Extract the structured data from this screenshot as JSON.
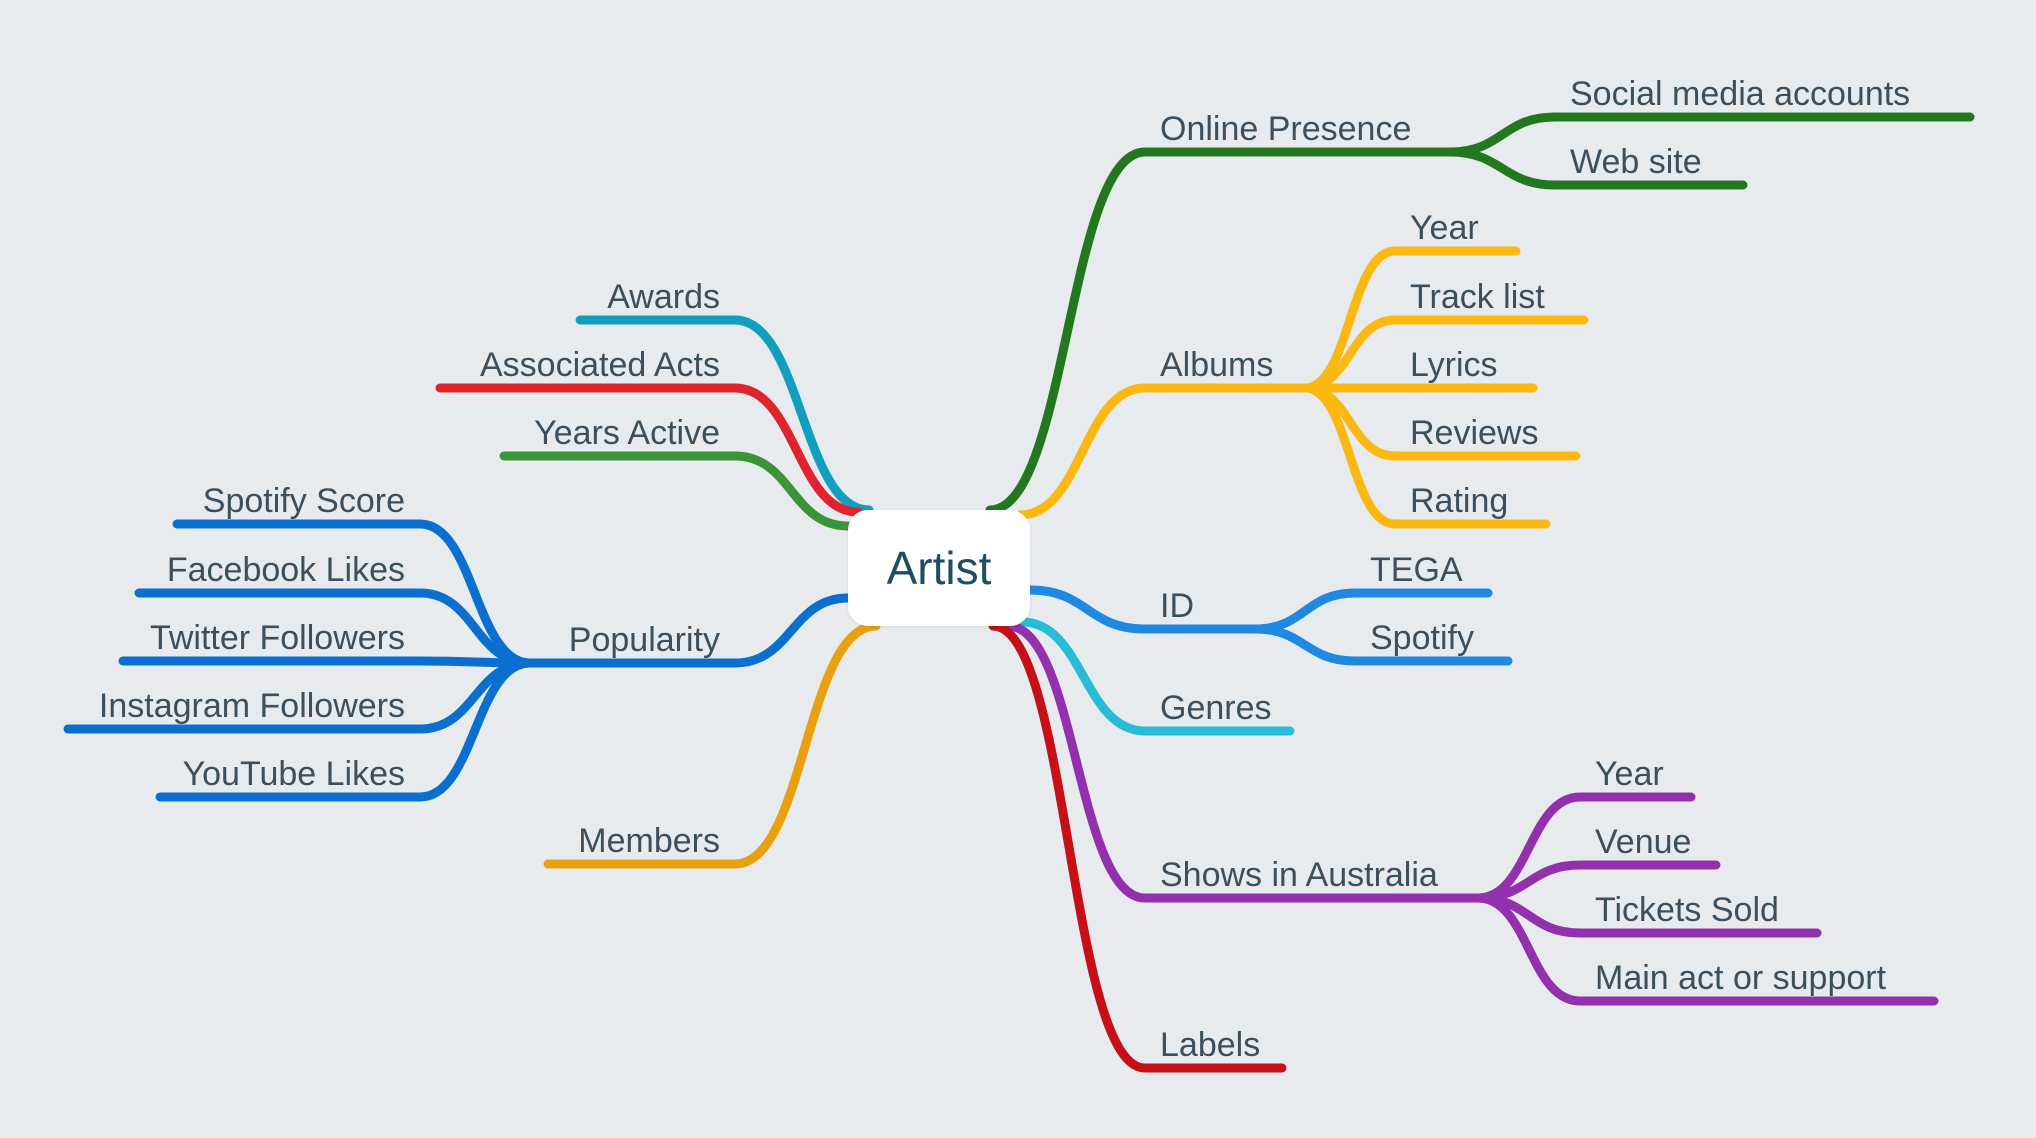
{
  "root": {
    "label": "Artist"
  },
  "right": [
    {
      "label": "Online Presence",
      "color": "#23781f",
      "children": [
        {
          "label": "Social media accounts"
        },
        {
          "label": "Web site"
        }
      ]
    },
    {
      "label": "Albums",
      "color": "#fbb813",
      "children": [
        {
          "label": "Year"
        },
        {
          "label": "Track list"
        },
        {
          "label": "Lyrics"
        },
        {
          "label": "Reviews"
        },
        {
          "label": "Rating"
        }
      ]
    },
    {
      "label": "ID",
      "color": "#1f88e0",
      "children": [
        {
          "label": "TEGA"
        },
        {
          "label": "Spotify"
        }
      ]
    },
    {
      "label": "Genres",
      "color": "#28bcd6",
      "children": []
    },
    {
      "label": "Shows in Australia",
      "color": "#9330ad",
      "children": [
        {
          "label": "Year"
        },
        {
          "label": "Venue"
        },
        {
          "label": "Tickets Sold"
        },
        {
          "label": "Main act or support"
        }
      ]
    },
    {
      "label": "Labels",
      "color": "#c70f17",
      "children": []
    }
  ],
  "left": [
    {
      "label": "Awards",
      "color": "#129fbd",
      "children": []
    },
    {
      "label": "Associated Acts",
      "color": "#e0242f",
      "children": []
    },
    {
      "label": "Years Active",
      "color": "#3b9538",
      "children": []
    },
    {
      "label": "Popularity",
      "color": "#0a6fcf",
      "children": [
        {
          "label": "Spotify Score"
        },
        {
          "label": "Facebook Likes"
        },
        {
          "label": "Twitter Followers"
        },
        {
          "label": "Instagram Followers"
        },
        {
          "label": "YouTube Likes"
        }
      ]
    },
    {
      "label": "Members",
      "color": "#e8a00f",
      "children": []
    }
  ]
}
